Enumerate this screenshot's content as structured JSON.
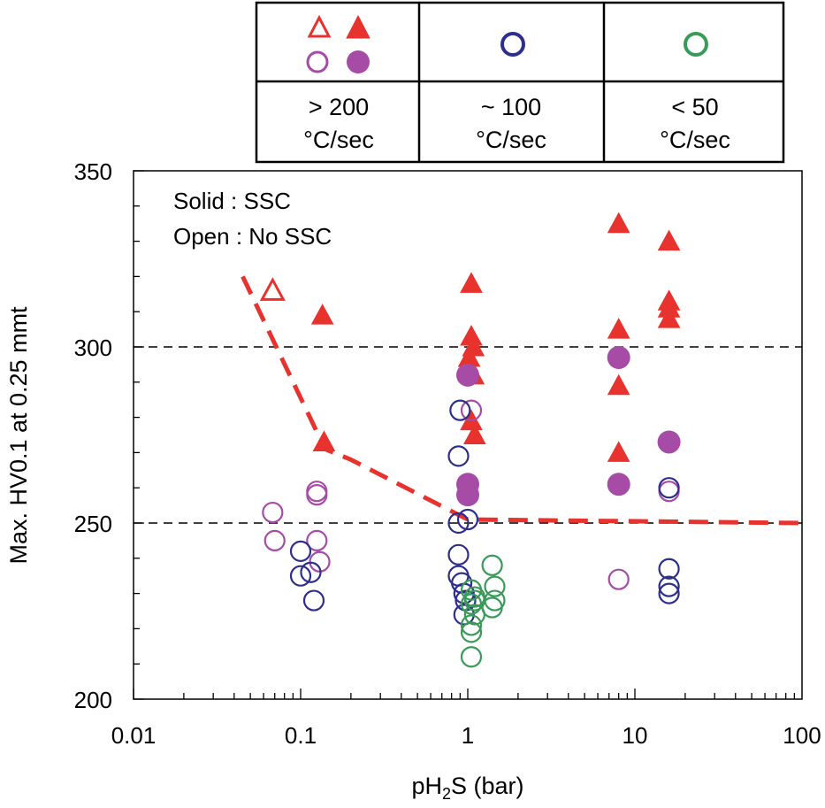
{
  "chart_data": {
    "type": "scatter",
    "xscale": "log",
    "xlim": [
      0.01,
      100
    ],
    "ylim": [
      200,
      350
    ],
    "xlabel_main": "pH",
    "xlabel_sub": "2",
    "xlabel_rest": "S (bar)",
    "ylabel": "Max. HV0.1 at 0.25 mmt",
    "xticks": [
      {
        "value": 0.01,
        "label": "0.01"
      },
      {
        "value": 0.1,
        "label": "0.1"
      },
      {
        "value": 1,
        "label": "1"
      },
      {
        "value": 10,
        "label": "10"
      },
      {
        "value": 100,
        "label": "100"
      }
    ],
    "yticks": [
      {
        "value": 200,
        "label": "200"
      },
      {
        "value": 250,
        "label": "250"
      },
      {
        "value": 300,
        "label": "300"
      },
      {
        "value": 350,
        "label": "350"
      }
    ],
    "hlines": [
      250,
      300
    ],
    "annotations": {
      "solid": "Solid : SSC",
      "open": "Open : No SSC"
    },
    "legend": {
      "placement": "top",
      "columns": [
        {
          "line1": "> 200",
          "line2": "°C/sec",
          "symbols": [
            "red-open-triangle",
            "red-solid-triangle",
            "purple-open-circle",
            "purple-solid-circle"
          ]
        },
        {
          "line1": "~ 100",
          "line2": "°C/sec",
          "symbols": [
            "blue-open-circle"
          ]
        },
        {
          "line1": "< 50",
          "line2": "°C/sec",
          "symbols": [
            "green-open-circle"
          ]
        }
      ]
    },
    "colors": {
      "red": "#e8322e",
      "purple": "#a64ca6",
      "blue": "#2e2e8c",
      "green": "#3a9a5a",
      "boundary": "#e8322e"
    },
    "boundary_line": {
      "points": [
        [
          0.045,
          320
        ],
        [
          0.14,
          271
        ],
        [
          0.2,
          268
        ],
        [
          1.0,
          251
        ],
        [
          100,
          250
        ]
      ]
    },
    "series": [
      {
        "name": "> 200 °C/sec triangle, No SSC",
        "marker": "triangle",
        "filled": false,
        "color": "#e8322e",
        "points": [
          [
            0.068,
            316
          ]
        ]
      },
      {
        "name": "> 200 °C/sec triangle, SSC",
        "marker": "triangle",
        "filled": true,
        "color": "#e8322e",
        "points": [
          [
            0.135,
            309
          ],
          [
            0.138,
            273
          ],
          [
            1.05,
            318
          ],
          [
            1.05,
            303
          ],
          [
            1.08,
            300
          ],
          [
            1.02,
            297
          ],
          [
            1.08,
            292
          ],
          [
            1.05,
            279
          ],
          [
            1.1,
            275
          ],
          [
            8.0,
            335
          ],
          [
            8.0,
            305
          ],
          [
            8.0,
            289
          ],
          [
            8.0,
            270
          ],
          [
            16,
            330
          ],
          [
            16,
            313
          ],
          [
            16,
            311
          ],
          [
            16,
            308
          ]
        ]
      },
      {
        "name": "> 200 °C/sec circle, SSC",
        "marker": "circle",
        "filled": true,
        "color": "#a64ca6",
        "points": [
          [
            1.0,
            292
          ],
          [
            1.0,
            261
          ],
          [
            1.0,
            258
          ],
          [
            8.0,
            297
          ],
          [
            8.0,
            261
          ],
          [
            16,
            273
          ]
        ]
      },
      {
        "name": "> 200 °C/sec circle, No SSC",
        "marker": "circle",
        "filled": false,
        "color": "#a64ca6",
        "points": [
          [
            0.068,
            253
          ],
          [
            0.07,
            245
          ],
          [
            0.125,
            259
          ],
          [
            0.125,
            258
          ],
          [
            0.125,
            245
          ],
          [
            0.13,
            239
          ],
          [
            1.05,
            282
          ],
          [
            8.0,
            234
          ],
          [
            16,
            259
          ]
        ]
      },
      {
        "name": "~ 100 °C/sec circle, No SSC",
        "marker": "circle",
        "filled": false,
        "color": "#2e2e8c",
        "points": [
          [
            0.9,
            282
          ],
          [
            0.88,
            269
          ],
          [
            0.88,
            250
          ],
          [
            1.0,
            251
          ],
          [
            0.88,
            241
          ],
          [
            0.88,
            235
          ],
          [
            0.92,
            233
          ],
          [
            0.95,
            230
          ],
          [
            0.97,
            228
          ],
          [
            0.95,
            224
          ],
          [
            0.1,
            242
          ],
          [
            0.1,
            235
          ],
          [
            0.115,
            236
          ],
          [
            0.12,
            228
          ],
          [
            16,
            260
          ],
          [
            16,
            237
          ],
          [
            16,
            232
          ],
          [
            16,
            230
          ]
        ]
      },
      {
        "name": "< 50 °C/sec circle, No SSC",
        "marker": "circle",
        "filled": false,
        "color": "#3a9a5a",
        "points": [
          [
            1.05,
            231
          ],
          [
            1.1,
            229
          ],
          [
            1.05,
            227
          ],
          [
            1.1,
            224
          ],
          [
            1.05,
            221
          ],
          [
            1.05,
            219
          ],
          [
            1.05,
            212
          ],
          [
            1.4,
            238
          ],
          [
            1.45,
            232
          ],
          [
            1.45,
            228
          ],
          [
            1.4,
            226
          ],
          [
            1.1,
            228
          ]
        ]
      }
    ]
  }
}
